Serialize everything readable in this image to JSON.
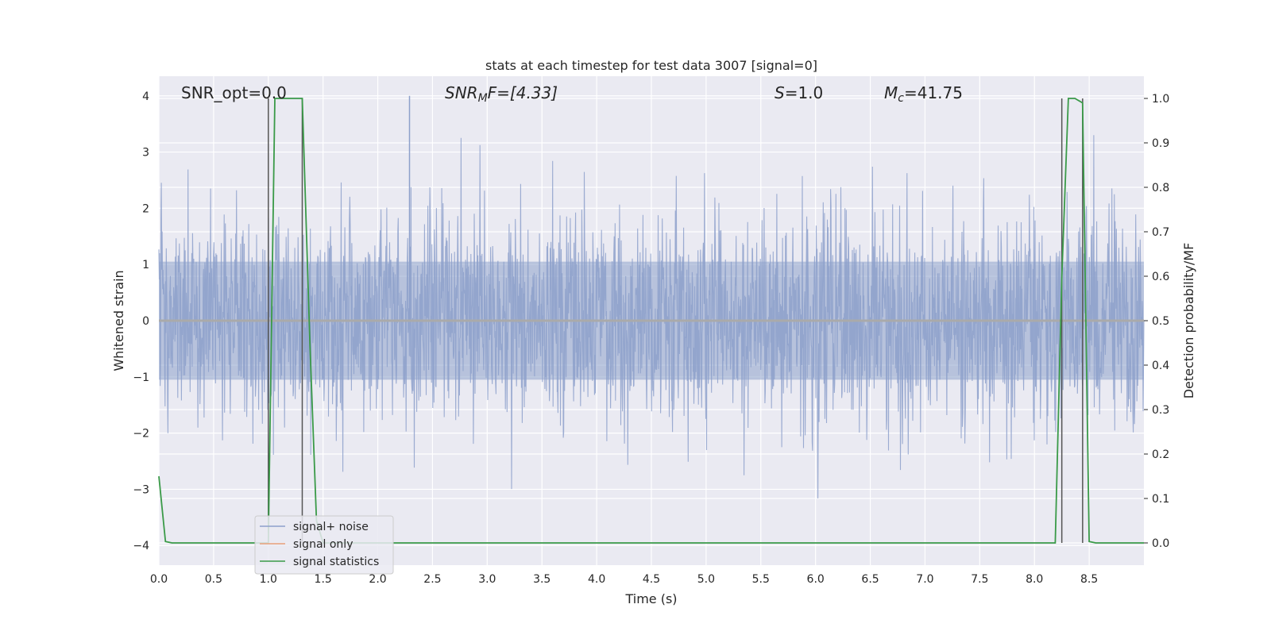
{
  "chart_data": {
    "type": "line",
    "title": "stats at each timestep for test data 3007 [signal=0]",
    "xlabel": "Time (s)",
    "ylabel_left": "Whitened strain",
    "ylabel_right": "Detection probability/MF",
    "xlim": [
      0.0,
      9.0
    ],
    "ylim_left": [
      -4.35,
      4.35
    ],
    "ylim_right": [
      -0.05,
      1.05
    ],
    "xticks": [
      0.0,
      0.5,
      1.0,
      1.5,
      2.0,
      2.5,
      3.0,
      3.5,
      4.0,
      4.5,
      5.0,
      5.5,
      6.0,
      6.5,
      7.0,
      7.5,
      8.0,
      8.5
    ],
    "xtick_labels": [
      "0.0",
      "0.5",
      "1.0",
      "1.5",
      "2.0",
      "2.5",
      "3.0",
      "3.5",
      "4.0",
      "4.5",
      "5.0",
      "5.5",
      "6.0",
      "6.5",
      "7.0",
      "7.5",
      "8.0",
      "8.5"
    ],
    "yticks_left": [
      -4,
      -3,
      -2,
      -1,
      0,
      1,
      2,
      3,
      4
    ],
    "ytick_labels_left": [
      "−4",
      "−3",
      "−2",
      "−1",
      "0",
      "1",
      "2",
      "3",
      "4"
    ],
    "yticks_right": [
      0.0,
      0.1,
      0.2,
      0.3,
      0.4,
      0.5,
      0.6,
      0.7,
      0.8,
      0.9,
      1.0
    ],
    "ytick_labels_right": [
      "0.0",
      "0.1",
      "0.2",
      "0.3",
      "0.4",
      "0.5",
      "0.6",
      "0.7",
      "0.8",
      "0.9",
      "1.0"
    ],
    "grid": true,
    "legend_placement": "lower-left",
    "annotations": {
      "snr_opt": "SNR_opt=0.0",
      "snr_mf_main": "SNR",
      "snr_mf_sub": "M",
      "snr_mf_rest": "F=[4.33]",
      "s_main": "S",
      "s_rest": "=1.0",
      "mc_main": "M",
      "mc_sub": "c",
      "mc_rest": "=41.75"
    },
    "series": [
      {
        "name": "signal+ noise",
        "color": "#8da0cb",
        "axis": "left",
        "description_values": {
          "typical_range": [
            -2.5,
            2.5
          ],
          "max": 4.0,
          "min": -3.3
        }
      },
      {
        "name": "signal only",
        "color": "#e8a07a",
        "axis": "left",
        "x": [
          0.0,
          9.0
        ],
        "y": [
          0.0,
          0.0
        ]
      },
      {
        "name": "signal statistics",
        "color": "#3a9a48",
        "axis": "right",
        "x": [
          0.0,
          0.06,
          0.12,
          0.2,
          0.94,
          1.0,
          1.06,
          1.12,
          1.31,
          1.38,
          1.44,
          1.5,
          8.19,
          8.25,
          8.31,
          8.37,
          8.44,
          8.5,
          8.56,
          9.0
        ],
        "y": [
          0.15,
          0.003,
          0.0,
          0.0,
          0.0,
          0.0,
          1.0,
          1.0,
          1.0,
          0.45,
          0.05,
          0.0,
          0.0,
          0.6,
          1.0,
          1.0,
          0.99,
          0.003,
          0.0,
          0.0
        ]
      }
    ],
    "vertical_lines": {
      "color": "#555555",
      "x": [
        1.0,
        1.31,
        8.25,
        8.44
      ]
    }
  }
}
